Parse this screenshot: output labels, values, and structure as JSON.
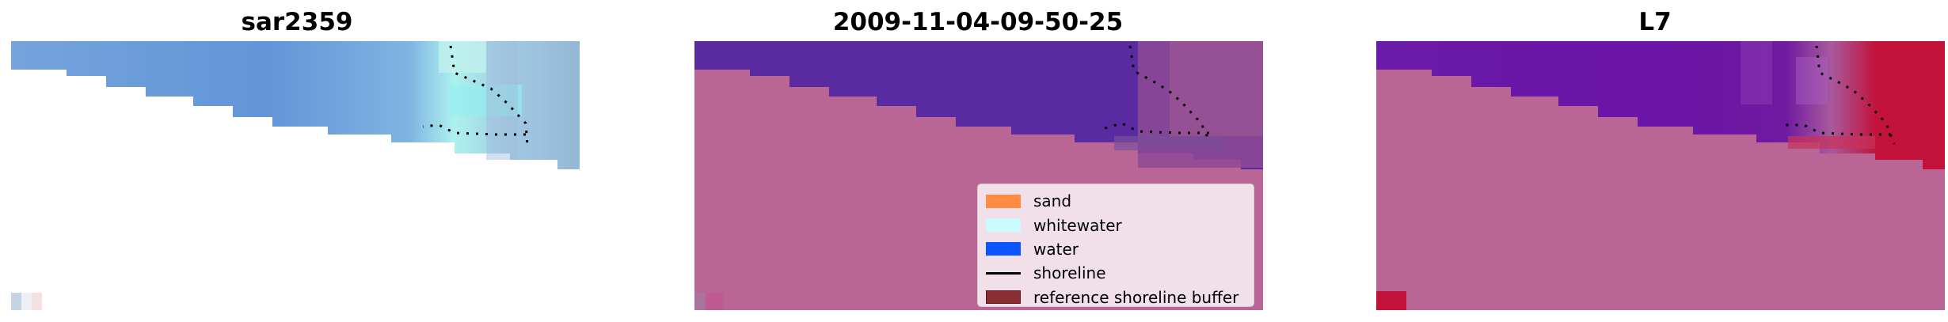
{
  "panels": [
    {
      "title": "sar2359"
    },
    {
      "title": "2009-11-04-09-50-25"
    },
    {
      "title": "L7"
    }
  ],
  "legend": {
    "items": [
      {
        "label": "sand",
        "color": "#ff8c42",
        "kind": "patch"
      },
      {
        "label": "whitewater",
        "color": "#c8fbfb",
        "kind": "patch"
      },
      {
        "label": "water",
        "color": "#0a55ff",
        "kind": "patch"
      },
      {
        "label": "shoreline",
        "color": "#000000",
        "kind": "line"
      },
      {
        "label": "reference shoreline buffer",
        "color": "#8b2e33",
        "kind": "patch"
      }
    ]
  },
  "colors": {
    "land_overlay": "#b96697",
    "deep_water": "#5a2aa0",
    "sar_water": "#5e93d6",
    "l7_hot": "#c2123a"
  }
}
